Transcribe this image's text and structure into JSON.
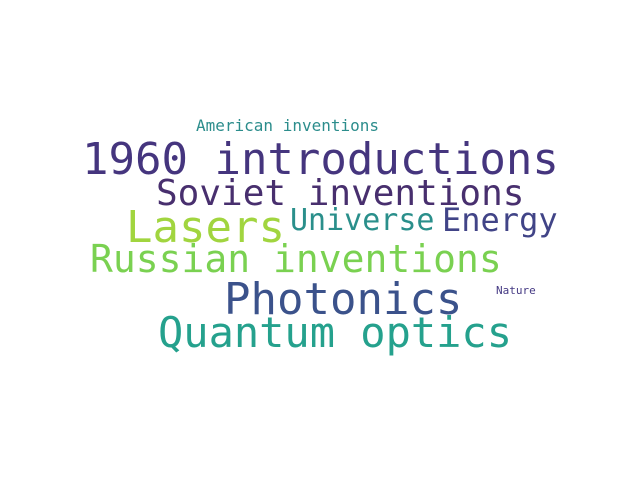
{
  "words": [
    {
      "id": "w-1960",
      "text": "1960 introductions",
      "color": "#45357e"
    },
    {
      "id": "w-soviet",
      "text": "Soviet inventions",
      "color": "#482f6e"
    },
    {
      "id": "w-lasers",
      "text": "Lasers",
      "color": "#a1d53f"
    },
    {
      "id": "w-universe",
      "text": "Universe",
      "color": "#2a8f8b"
    },
    {
      "id": "w-energy",
      "text": "Energy",
      "color": "#414487"
    },
    {
      "id": "w-russian",
      "text": "Russian inventions",
      "color": "#7ad151"
    },
    {
      "id": "w-photonics",
      "text": "Photonics",
      "color": "#3b528b"
    },
    {
      "id": "w-quantum",
      "text": "Quantum optics",
      "color": "#25a18d"
    },
    {
      "id": "w-american",
      "text": "American inventions",
      "color": "#2c8d8c"
    },
    {
      "id": "w-nature",
      "text": "Nature",
      "color": "#443983"
    }
  ]
}
